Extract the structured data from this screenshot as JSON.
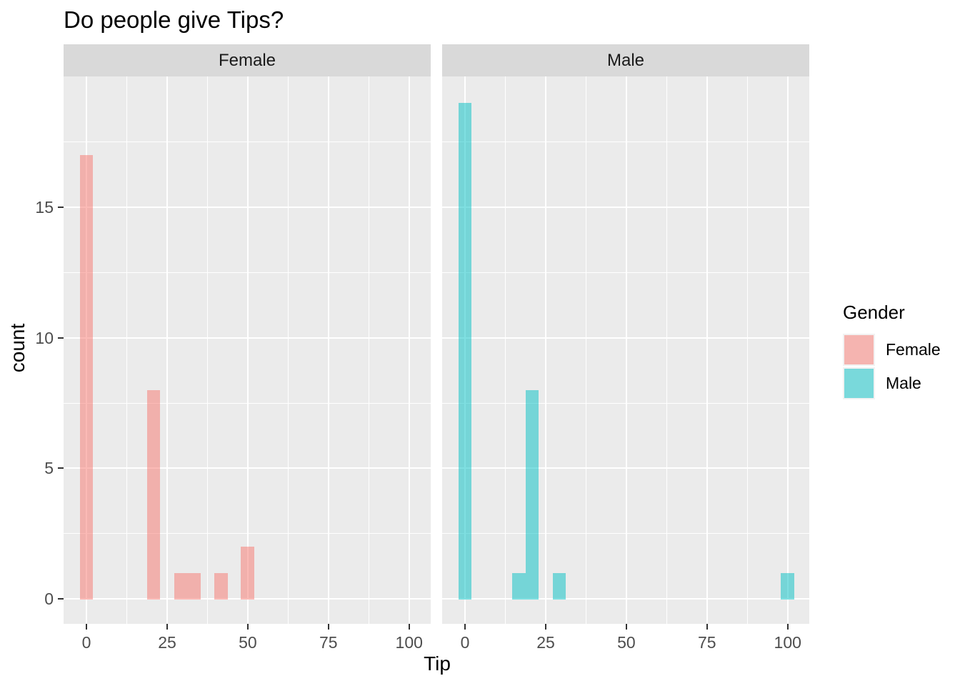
{
  "title": "Do people give Tips?",
  "axes": {
    "x": {
      "label": "Tip",
      "ticks": [
        0,
        25,
        50,
        75,
        100
      ]
    },
    "y": {
      "label": "count",
      "ticks": [
        0,
        5,
        10,
        15
      ]
    }
  },
  "legend": {
    "title": "Gender",
    "entries": [
      {
        "label": "Female",
        "color": "rgba(248,118,109,0.5)"
      },
      {
        "label": "Male",
        "color": "rgba(0,191,196,0.5)"
      }
    ]
  },
  "colors": {
    "panel_bg": "#EBEBEB",
    "strip_bg": "#D9D9D9",
    "gridline": "#FFFFFF",
    "tick_mark": "#333333",
    "tick_label": "#4D4D4D",
    "female_fill_base": "#F8766D",
    "male_fill_base": "#00BFC4"
  },
  "chart_data": {
    "type": "histogram",
    "title": "Do people give Tips?",
    "xlabel": "Tip",
    "ylabel": "count",
    "facet_variable": "Gender",
    "legend_position": "right",
    "grid": true,
    "binwidth": 4.17,
    "xlim": [
      -7.1,
      106.7
    ],
    "ylim": [
      -0.95,
      20
    ],
    "x_ticks": [
      0,
      25,
      50,
      75,
      100
    ],
    "y_ticks": [
      0,
      5,
      10,
      15
    ],
    "facets": [
      {
        "label": "Female",
        "fill": "rgba(248,118,109,0.5)",
        "bins": [
          {
            "center": 0,
            "count": 17
          },
          {
            "center": 20.8,
            "count": 8
          },
          {
            "center": 29.2,
            "count": 1
          },
          {
            "center": 33.3,
            "count": 1
          },
          {
            "center": 41.7,
            "count": 1
          },
          {
            "center": 50,
            "count": 2
          }
        ]
      },
      {
        "label": "Male",
        "fill": "rgba(0,191,196,0.5)",
        "bins": [
          {
            "center": 0,
            "count": 19
          },
          {
            "center": 16.7,
            "count": 1
          },
          {
            "center": 20.8,
            "count": 8
          },
          {
            "center": 29.2,
            "count": 1
          },
          {
            "center": 100,
            "count": 1
          }
        ]
      }
    ]
  }
}
